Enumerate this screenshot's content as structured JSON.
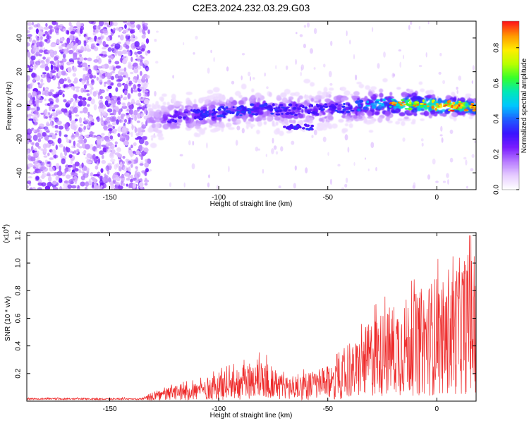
{
  "title": "C2E3.2024.232.03.29.G03",
  "colors": {
    "snr_line": "#ee2a2a",
    "axis": "#000000",
    "colormap": [
      "#ffffff",
      "#e6ccff",
      "#b77bff",
      "#7a1dff",
      "#3a12ff",
      "#1f5bff",
      "#00c6ff",
      "#00e8b8",
      "#36ff2b",
      "#b8ff00",
      "#ffee00",
      "#ff9a00",
      "#ff1a1a"
    ]
  },
  "chart_data": [
    {
      "type": "heatmap",
      "title": "",
      "xlabel": "Height of straight line (km)",
      "ylabel": "Frequency (Hz)",
      "xlim": [
        -188,
        18
      ],
      "ylim": [
        -50,
        50
      ],
      "x_ticks": [
        -150,
        -100,
        -50,
        0
      ],
      "y_ticks": [
        -40,
        -20,
        0,
        20,
        40
      ],
      "colorbar": {
        "label": "Normalized spectral amplitude",
        "range": [
          0.0,
          0.95
        ],
        "ticks": [
          "0.0",
          "0.2",
          "0.4",
          "0.6",
          "0.8"
        ]
      },
      "features": {
        "noise_region_x": [
          -188,
          -132
        ],
        "signal_ridge": [
          {
            "x": -132,
            "freq": -9,
            "amp": 0.15
          },
          {
            "x": -120,
            "freq": -7,
            "amp": 0.3
          },
          {
            "x": -100,
            "freq": -4,
            "amp": 0.35
          },
          {
            "x": -80,
            "freq": -2,
            "amp": 0.35
          },
          {
            "x": -60,
            "freq": -3,
            "amp": 0.3
          },
          {
            "x": -40,
            "freq": -1,
            "amp": 0.35
          },
          {
            "x": -20,
            "freq": 1,
            "amp": 0.55
          },
          {
            "x": 0,
            "freq": 0,
            "amp": 0.85
          },
          {
            "x": 18,
            "freq": -1,
            "amp": 0.9
          }
        ],
        "secondary_blob": {
          "x": [
            -70,
            -57
          ],
          "freq": -13
        }
      }
    },
    {
      "type": "line",
      "title": "",
      "xlabel": "Height of straight line (km)",
      "ylabel": "SNR (10 * v/v)",
      "y_multiplier": "(x10^4)",
      "xlim": [
        -188,
        18
      ],
      "ylim": [
        0,
        1.22
      ],
      "x_ticks": [
        -150,
        -100,
        -50,
        0
      ],
      "y_ticks": [
        0.2,
        0.4,
        0.6,
        0.8,
        1.0,
        1.2
      ],
      "series": [
        {
          "x": [
            -188,
            -170,
            -150,
            -135,
            -128,
            -120,
            -110,
            -100,
            -90,
            -80,
            -70,
            -60,
            -50,
            -40,
            -30,
            -20,
            -10,
            0,
            5,
            10,
            15,
            18
          ],
          "y": [
            0.02,
            0.02,
            0.02,
            0.025,
            0.06,
            0.1,
            0.12,
            0.18,
            0.22,
            0.28,
            0.16,
            0.18,
            0.22,
            0.32,
            0.52,
            0.62,
            0.68,
            0.8,
            0.72,
            0.9,
            0.95,
            0.9
          ]
        }
      ]
    }
  ]
}
